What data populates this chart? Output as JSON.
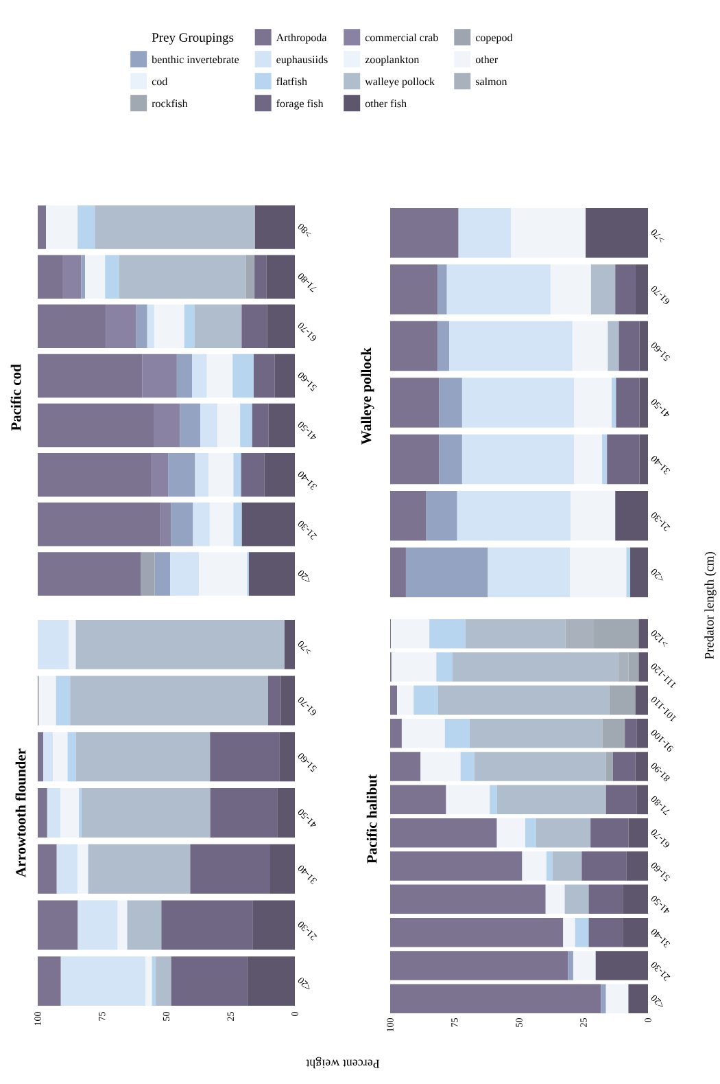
{
  "chart_data": [
    {
      "type": "bar",
      "orientation": "horizontal",
      "title": "Arrowtooth flounder",
      "xlabel": "Percent weight",
      "stacked": true,
      "categories": [
        ">70",
        "61-70",
        "51-60",
        "41-50",
        "31-40",
        "21-30",
        "<20"
      ],
      "xlim": [
        100,
        0
      ],
      "xticks": [
        100,
        75,
        50,
        25,
        0
      ],
      "series": [
        {
          "color": "#5d566c",
          "values": [
            4,
            5.5,
            5.9,
            6.7,
            9.6,
            16.3,
            18.5
          ]
        },
        {
          "color": "#6f6783",
          "values": [
            0,
            4.9,
            27.1,
            26.2,
            31.1,
            35.6,
            29.6
          ]
        },
        {
          "color": "#b0bdcd",
          "values": [
            81.2,
            77,
            52.2,
            50.1,
            39.7,
            13.3,
            6
          ]
        },
        {
          "color": "#b8d5ef",
          "values": [
            0,
            5.5,
            3.2,
            1,
            0,
            0,
            1.5
          ]
        },
        {
          "color": "#f1f5fa",
          "values": [
            2.7,
            6.7,
            5.7,
            7.1,
            4,
            3.7,
            2.5
          ]
        },
        {
          "color": "#d2e4f5",
          "values": [
            12.1,
            0,
            3.7,
            5.2,
            8.2,
            15.5,
            32.9
          ]
        },
        {
          "color": "#7b7390",
          "values": [
            0,
            0.4,
            2.2,
            3.7,
            7.4,
            15.6,
            9
          ]
        }
      ]
    },
    {
      "type": "bar",
      "orientation": "horizontal",
      "title": "Pacific cod",
      "stacked": true,
      "legend": "top",
      "legend_title": "Prey Groupings",
      "tick_labels": "y",
      "categories": [
        ">80",
        "71-80",
        "61-70",
        "51-60",
        "41-50",
        "31-40",
        "21-30",
        "<20"
      ],
      "xlim": [
        100,
        0
      ],
      "series": [
        {
          "name": "other fish",
          "color": "#5d566c",
          "values": [
            15.5,
            11,
            10.8,
            7.8,
            10.2,
            11.9,
            20.6,
            17.9
          ]
        },
        {
          "name": "forage fish",
          "color": "#6f6783",
          "values": [
            0,
            4.7,
            9.9,
            8.2,
            6.4,
            9,
            0,
            0
          ]
        },
        {
          "name": "rockfish",
          "color": "#a0a8b2",
          "values": [
            0,
            3.3,
            0,
            0,
            0,
            0,
            0,
            0
          ]
        },
        {
          "name": "salmon",
          "color": "#a8b1bc",
          "values": [
            0,
            0,
            0,
            0,
            0,
            0,
            0,
            0
          ]
        },
        {
          "name": "walleye pollock",
          "color": "#b0bdcd",
          "values": [
            62.3,
            49.4,
            18.4,
            0,
            0,
            0,
            0,
            0
          ]
        },
        {
          "name": "flatfish",
          "color": "#b8d5ef",
          "values": [
            6.7,
            5.4,
            3.9,
            8.2,
            4.7,
            3,
            3.3,
            0.7
          ]
        },
        {
          "name": "cod",
          "color": "#e9f2fb",
          "values": [
            0,
            0,
            0,
            0,
            0,
            0,
            0,
            0
          ]
        },
        {
          "name": "other",
          "color": "#f1f5fa",
          "values": [
            12.3,
            7.8,
            11.7,
            10,
            8.8,
            9.7,
            9.2,
            18.7
          ]
        },
        {
          "name": "zooplankton",
          "color": "#edf3fa",
          "values": [
            0,
            0,
            0,
            0,
            0,
            0,
            0,
            0
          ]
        },
        {
          "name": "euphausiids",
          "color": "#d2e4f5",
          "values": [
            0,
            0,
            2.7,
            5.8,
            6.7,
            5.2,
            6.5,
            11.2
          ]
        },
        {
          "name": "benthic invertebrate",
          "color": "#95a3c2",
          "values": [
            0,
            1.5,
            4.3,
            5.9,
            7.9,
            10.5,
            8.5,
            6
          ]
        },
        {
          "name": "copepod",
          "color": "#9ea5b0",
          "values": [
            0,
            0,
            0,
            0,
            0,
            0,
            0,
            5.5
          ]
        },
        {
          "name": "commercial crab",
          "color": "#8a82a3",
          "values": [
            0,
            7.3,
            11.7,
            13.5,
            10,
            6.7,
            4.1,
            0
          ]
        },
        {
          "name": "Arthropoda",
          "color": "#7b7390",
          "values": [
            3.2,
            9.6,
            26.6,
            40.6,
            45.3,
            44,
            47.8,
            40
          ]
        }
      ]
    },
    {
      "type": "bar",
      "orientation": "horizontal",
      "title": "Pacific halibut",
      "ylabel": "Predator length (cm)",
      "stacked": true,
      "categories": [
        ">120",
        "111-120",
        "101-110",
        "91-100",
        "81-90",
        "71-80",
        "61-70",
        "51-60",
        "41-50",
        "31-40",
        "21-30",
        "<20"
      ],
      "xlim": [
        100,
        0
      ],
      "xticks": [
        100,
        75,
        50,
        25,
        0
      ],
      "series": [
        {
          "color": "#5d566c",
          "values": [
            3.6,
            3.6,
            4.9,
            4.3,
            4.9,
            4.3,
            7.6,
            8.3,
            9.6,
            9.6,
            20.3,
            7.6
          ]
        },
        {
          "color": "#6f6783",
          "values": [
            0,
            0,
            0,
            4.7,
            8.7,
            12,
            14.7,
            17.4,
            13.4,
            13.4,
            0,
            0
          ]
        },
        {
          "color": "#a0a8b2",
          "values": [
            17.4,
            4,
            10.1,
            8.6,
            2.7,
            0,
            0,
            0,
            0,
            0,
            0,
            0
          ]
        },
        {
          "color": "#a8b1bc",
          "values": [
            11,
            4,
            0,
            0,
            0,
            0,
            0,
            0,
            0,
            0,
            0,
            0
          ]
        },
        {
          "color": "#b0bdcd",
          "values": [
            38.8,
            64.2,
            66.4,
            51.6,
            51.1,
            42.3,
            21.2,
            11.3,
            9.3,
            0,
            0,
            0
          ]
        },
        {
          "color": "#b8d5ef",
          "values": [
            14,
            6.3,
            9.5,
            9.6,
            5.3,
            2.8,
            4.1,
            2.4,
            0,
            5.3,
            0,
            0
          ]
        },
        {
          "color": "#f1f5fa",
          "values": [
            14.9,
            17.4,
            6.4,
            16.7,
            15.5,
            16.9,
            11,
            9.4,
            7.4,
            4.6,
            8.7,
            8.7
          ]
        },
        {
          "color": "#95a3c2",
          "values": [
            0,
            0,
            0,
            0,
            0,
            0,
            0,
            0,
            0,
            0,
            2,
            2
          ]
        },
        {
          "color": "#7b7390",
          "values": [
            0.3,
            0.5,
            2.7,
            4.5,
            11.8,
            21.7,
            41.4,
            51.2,
            60.3,
            67.1,
            69,
            81.7
          ]
        }
      ]
    },
    {
      "type": "bar",
      "orientation": "horizontal",
      "title": "Walleye pollock",
      "stacked": true,
      "tick_labels": "y",
      "categories": [
        ">70",
        "61-70",
        "51-60",
        "41-50",
        "31-40",
        "21-30",
        "<20"
      ],
      "xlim": [
        100,
        0
      ],
      "series": [
        {
          "color": "#5d566c",
          "values": [
            24.2,
            4.8,
            3.3,
            3.3,
            3.3,
            12.7,
            6.9
          ]
        },
        {
          "color": "#6f6783",
          "values": [
            0,
            7.9,
            8,
            9.1,
            12.6,
            0,
            0
          ]
        },
        {
          "color": "#b0bdcd",
          "values": [
            0,
            9.4,
            4.3,
            0,
            0,
            0,
            0
          ]
        },
        {
          "color": "#b8d5ef",
          "values": [
            0,
            0,
            0,
            1.7,
            1.9,
            0,
            1.5
          ]
        },
        {
          "color": "#f1f5fa",
          "values": [
            29,
            15.7,
            13.7,
            14.5,
            10.8,
            17.3,
            21.8
          ]
        },
        {
          "color": "#d2e4f5",
          "values": [
            20.3,
            40.2,
            47.8,
            43.5,
            43.5,
            44,
            31.9
          ]
        },
        {
          "color": "#95a3c2",
          "values": [
            0,
            3.6,
            4.5,
            8.9,
            8.9,
            12,
            31.8
          ]
        },
        {
          "color": "#7b7390",
          "values": [
            26.5,
            18.4,
            18.4,
            19,
            19,
            14,
            6.1
          ]
        }
      ]
    }
  ]
}
